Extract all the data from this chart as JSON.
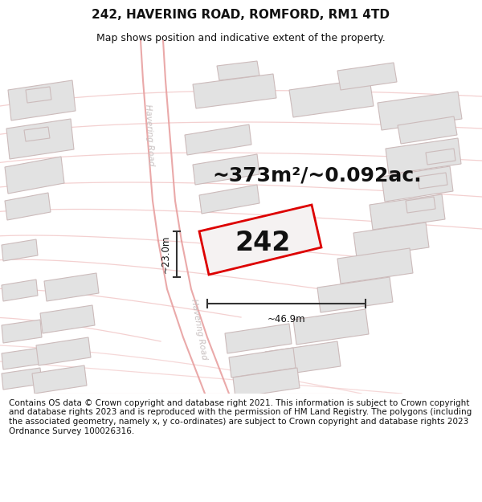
{
  "title": "242, HAVERING ROAD, ROMFORD, RM1 4TD",
  "subtitle": "Map shows position and indicative extent of the property.",
  "area_text": "~373m²/~0.092ac.",
  "label_242": "242",
  "dim_width": "~46.9m",
  "dim_height": "~23.0m",
  "footer": "Contains OS data © Crown copyright and database right 2021. This information is subject to Crown copyright and database rights 2023 and is reproduced with the permission of HM Land Registry. The polygons (including the associated geometry, namely x, y co-ordinates) are subject to Crown copyright and database rights 2023 Ordnance Survey 100026316.",
  "bg_color": "#ffffff",
  "map_bg": "#f7f3f3",
  "road_light": "#f2c8c8",
  "road_med": "#e8a0a0",
  "bld_fill": "#e2e2e2",
  "bld_edge": "#ccbbbb",
  "prop_stroke": "#dd0000",
  "prop_fill": "#f5f2f2",
  "dim_color": "#333333",
  "road_label_color": "#c8c0c0",
  "title_fs": 11,
  "subtitle_fs": 9,
  "area_fs": 18,
  "num_fs": 24,
  "footer_fs": 7.5
}
